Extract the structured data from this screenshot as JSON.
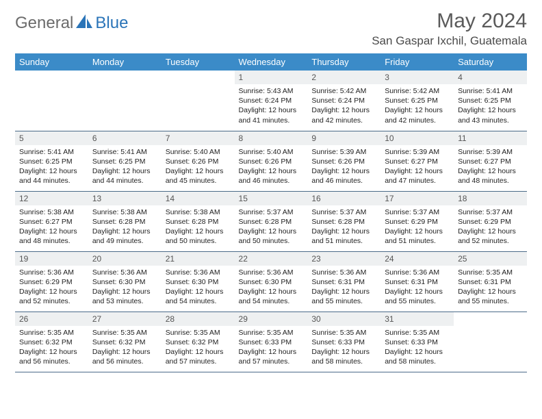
{
  "brand": {
    "text1": "General",
    "text2": "Blue"
  },
  "title": "May 2024",
  "location": "San Gaspar Ixchil, Guatemala",
  "colors": {
    "header_bg": "#3b8bc8",
    "header_text": "#ffffff",
    "daynum_bg": "#eef0f1",
    "border": "#4a6a88",
    "brand_gray": "#6b6b6b",
    "brand_blue": "#2a74b8"
  },
  "weekdays": [
    "Sunday",
    "Monday",
    "Tuesday",
    "Wednesday",
    "Thursday",
    "Friday",
    "Saturday"
  ],
  "grid": {
    "lead_blanks": 3,
    "trail_blanks": 1,
    "rows": 5,
    "cols": 7
  },
  "days": [
    {
      "n": 1,
      "sunrise": "5:43 AM",
      "sunset": "6:24 PM",
      "daylight": "12 hours and 41 minutes."
    },
    {
      "n": 2,
      "sunrise": "5:42 AM",
      "sunset": "6:24 PM",
      "daylight": "12 hours and 42 minutes."
    },
    {
      "n": 3,
      "sunrise": "5:42 AM",
      "sunset": "6:25 PM",
      "daylight": "12 hours and 42 minutes."
    },
    {
      "n": 4,
      "sunrise": "5:41 AM",
      "sunset": "6:25 PM",
      "daylight": "12 hours and 43 minutes."
    },
    {
      "n": 5,
      "sunrise": "5:41 AM",
      "sunset": "6:25 PM",
      "daylight": "12 hours and 44 minutes."
    },
    {
      "n": 6,
      "sunrise": "5:41 AM",
      "sunset": "6:25 PM",
      "daylight": "12 hours and 44 minutes."
    },
    {
      "n": 7,
      "sunrise": "5:40 AM",
      "sunset": "6:26 PM",
      "daylight": "12 hours and 45 minutes."
    },
    {
      "n": 8,
      "sunrise": "5:40 AM",
      "sunset": "6:26 PM",
      "daylight": "12 hours and 46 minutes."
    },
    {
      "n": 9,
      "sunrise": "5:39 AM",
      "sunset": "6:26 PM",
      "daylight": "12 hours and 46 minutes."
    },
    {
      "n": 10,
      "sunrise": "5:39 AM",
      "sunset": "6:27 PM",
      "daylight": "12 hours and 47 minutes."
    },
    {
      "n": 11,
      "sunrise": "5:39 AM",
      "sunset": "6:27 PM",
      "daylight": "12 hours and 48 minutes."
    },
    {
      "n": 12,
      "sunrise": "5:38 AM",
      "sunset": "6:27 PM",
      "daylight": "12 hours and 48 minutes."
    },
    {
      "n": 13,
      "sunrise": "5:38 AM",
      "sunset": "6:28 PM",
      "daylight": "12 hours and 49 minutes."
    },
    {
      "n": 14,
      "sunrise": "5:38 AM",
      "sunset": "6:28 PM",
      "daylight": "12 hours and 50 minutes."
    },
    {
      "n": 15,
      "sunrise": "5:37 AM",
      "sunset": "6:28 PM",
      "daylight": "12 hours and 50 minutes."
    },
    {
      "n": 16,
      "sunrise": "5:37 AM",
      "sunset": "6:28 PM",
      "daylight": "12 hours and 51 minutes."
    },
    {
      "n": 17,
      "sunrise": "5:37 AM",
      "sunset": "6:29 PM",
      "daylight": "12 hours and 51 minutes."
    },
    {
      "n": 18,
      "sunrise": "5:37 AM",
      "sunset": "6:29 PM",
      "daylight": "12 hours and 52 minutes."
    },
    {
      "n": 19,
      "sunrise": "5:36 AM",
      "sunset": "6:29 PM",
      "daylight": "12 hours and 52 minutes."
    },
    {
      "n": 20,
      "sunrise": "5:36 AM",
      "sunset": "6:30 PM",
      "daylight": "12 hours and 53 minutes."
    },
    {
      "n": 21,
      "sunrise": "5:36 AM",
      "sunset": "6:30 PM",
      "daylight": "12 hours and 54 minutes."
    },
    {
      "n": 22,
      "sunrise": "5:36 AM",
      "sunset": "6:30 PM",
      "daylight": "12 hours and 54 minutes."
    },
    {
      "n": 23,
      "sunrise": "5:36 AM",
      "sunset": "6:31 PM",
      "daylight": "12 hours and 55 minutes."
    },
    {
      "n": 24,
      "sunrise": "5:36 AM",
      "sunset": "6:31 PM",
      "daylight": "12 hours and 55 minutes."
    },
    {
      "n": 25,
      "sunrise": "5:35 AM",
      "sunset": "6:31 PM",
      "daylight": "12 hours and 55 minutes."
    },
    {
      "n": 26,
      "sunrise": "5:35 AM",
      "sunset": "6:32 PM",
      "daylight": "12 hours and 56 minutes."
    },
    {
      "n": 27,
      "sunrise": "5:35 AM",
      "sunset": "6:32 PM",
      "daylight": "12 hours and 56 minutes."
    },
    {
      "n": 28,
      "sunrise": "5:35 AM",
      "sunset": "6:32 PM",
      "daylight": "12 hours and 57 minutes."
    },
    {
      "n": 29,
      "sunrise": "5:35 AM",
      "sunset": "6:33 PM",
      "daylight": "12 hours and 57 minutes."
    },
    {
      "n": 30,
      "sunrise": "5:35 AM",
      "sunset": "6:33 PM",
      "daylight": "12 hours and 58 minutes."
    },
    {
      "n": 31,
      "sunrise": "5:35 AM",
      "sunset": "6:33 PM",
      "daylight": "12 hours and 58 minutes."
    }
  ],
  "labels": {
    "sunrise": "Sunrise:",
    "sunset": "Sunset:",
    "daylight": "Daylight:"
  }
}
